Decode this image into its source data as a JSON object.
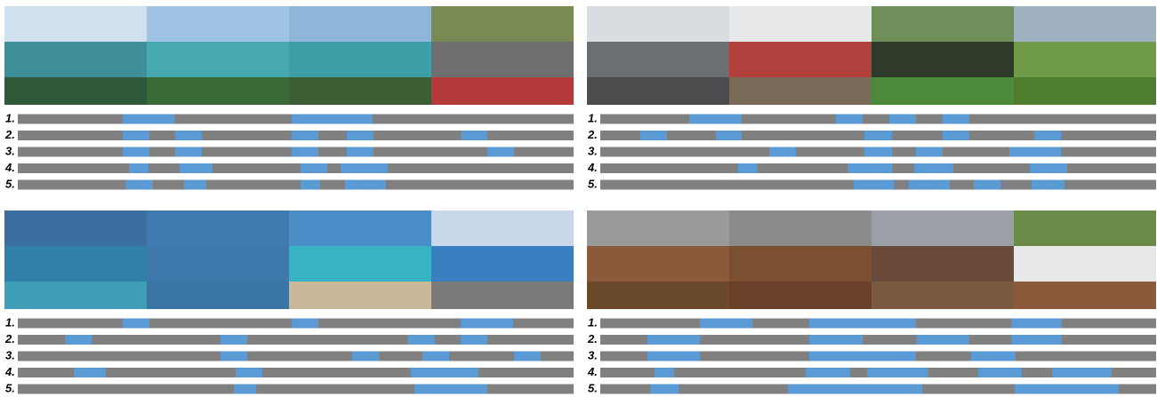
{
  "panels": [
    {
      "rows": [
        {
          "label": "1.",
          "segments": [
            [
              0.189,
              0.282
            ],
            [
              0.493,
              0.638
            ]
          ]
        },
        {
          "label": "2.",
          "segments": [
            [
              0.189,
              0.237
            ],
            [
              0.283,
              0.331
            ],
            [
              0.493,
              0.541
            ],
            [
              0.592,
              0.64
            ],
            [
              0.798,
              0.845
            ]
          ]
        },
        {
          "label": "3.",
          "segments": [
            [
              0.189,
              0.237
            ],
            [
              0.283,
              0.331
            ],
            [
              0.493,
              0.541
            ],
            [
              0.592,
              0.64
            ],
            [
              0.845,
              0.893
            ]
          ]
        },
        {
          "label": "4.",
          "segments": [
            [
              0.2,
              0.235
            ],
            [
              0.291,
              0.35
            ],
            [
              0.509,
              0.557
            ],
            [
              0.581,
              0.666
            ]
          ]
        },
        {
          "label": "5.",
          "segments": [
            [
              0.194,
              0.243
            ],
            [
              0.299,
              0.339
            ],
            [
              0.509,
              0.544
            ],
            [
              0.589,
              0.662
            ]
          ]
        }
      ]
    },
    {
      "rows": [
        {
          "label": "1.",
          "segments": [
            [
              0.16,
              0.254
            ],
            [
              0.424,
              0.472
            ],
            [
              0.52,
              0.568
            ],
            [
              0.616,
              0.664
            ]
          ]
        },
        {
          "label": "2.",
          "segments": [
            [
              0.072,
              0.12
            ],
            [
              0.208,
              0.254
            ],
            [
              0.475,
              0.525
            ],
            [
              0.616,
              0.664
            ],
            [
              0.781,
              0.829
            ]
          ]
        },
        {
          "label": "3.",
          "segments": [
            [
              0.304,
              0.352
            ],
            [
              0.475,
              0.525
            ],
            [
              0.568,
              0.616
            ],
            [
              0.736,
              0.829
            ]
          ]
        },
        {
          "label": "4.",
          "segments": [
            [
              0.248,
              0.282
            ],
            [
              0.445,
              0.525
            ],
            [
              0.565,
              0.635
            ],
            [
              0.773,
              0.84
            ]
          ]
        },
        {
          "label": "5.",
          "segments": [
            [
              0.456,
              0.528
            ],
            [
              0.555,
              0.629
            ],
            [
              0.672,
              0.72
            ],
            [
              0.776,
              0.835
            ]
          ]
        }
      ]
    },
    {
      "rows": [
        {
          "label": "1.",
          "segments": [
            [
              0.189,
              0.237
            ],
            [
              0.493,
              0.541
            ],
            [
              0.797,
              0.891
            ]
          ]
        },
        {
          "label": "2.",
          "segments": [
            [
              0.085,
              0.133
            ],
            [
              0.365,
              0.413
            ],
            [
              0.702,
              0.75
            ],
            [
              0.797,
              0.845
            ]
          ]
        },
        {
          "label": "3.",
          "segments": [
            [
              0.365,
              0.413
            ],
            [
              0.602,
              0.65
            ],
            [
              0.728,
              0.776
            ],
            [
              0.893,
              0.941
            ]
          ]
        },
        {
          "label": "4.",
          "segments": [
            [
              0.101,
              0.158
            ],
            [
              0.392,
              0.44
            ],
            [
              0.707,
              0.829
            ]
          ]
        },
        {
          "label": "5.",
          "segments": [
            [
              0.389,
              0.429
            ],
            [
              0.714,
              0.845
            ]
          ]
        }
      ]
    },
    {
      "rows": [
        {
          "label": "1.",
          "segments": [
            [
              0.179,
              0.274
            ],
            [
              0.376,
              0.568
            ],
            [
              0.74,
              0.83
            ]
          ]
        },
        {
          "label": "2.",
          "segments": [
            [
              0.085,
              0.179
            ],
            [
              0.376,
              0.472
            ],
            [
              0.569,
              0.664
            ],
            [
              0.74,
              0.83
            ]
          ]
        },
        {
          "label": "3.",
          "segments": [
            [
              0.085,
              0.179
            ],
            [
              0.376,
              0.568
            ],
            [
              0.667,
              0.747
            ]
          ]
        },
        {
          "label": "4.",
          "segments": [
            [
              0.098,
              0.133
            ],
            [
              0.37,
              0.45
            ],
            [
              0.48,
              0.59
            ],
            [
              0.68,
              0.758
            ],
            [
              0.813,
              0.92
            ]
          ]
        },
        {
          "label": "5.",
          "segments": [
            [
              0.09,
              0.141
            ],
            [
              0.338,
              0.579
            ],
            [
              0.746,
              0.933
            ]
          ]
        }
      ]
    }
  ]
}
